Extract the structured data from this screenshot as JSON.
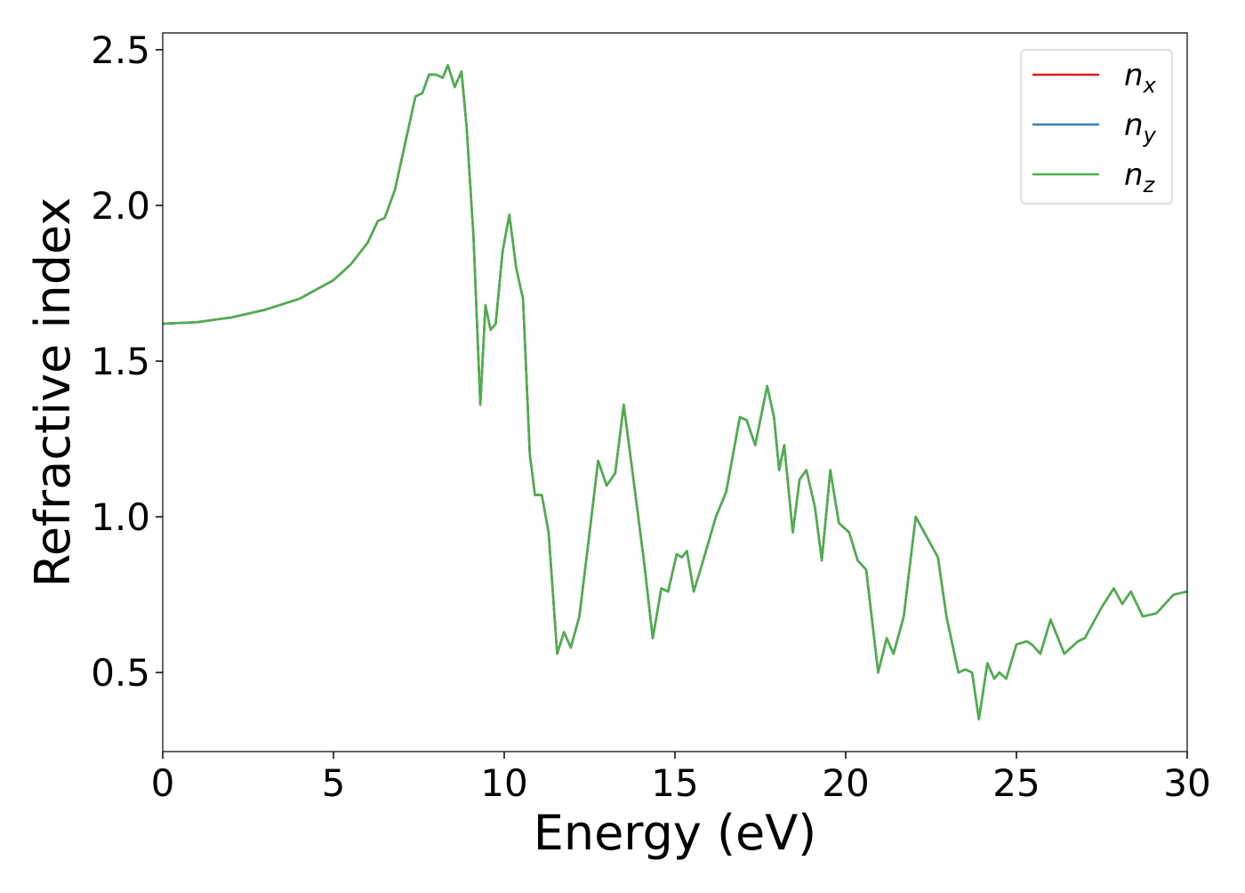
{
  "chart_data": {
    "type": "line",
    "xlabel": "Energy (eV)",
    "ylabel": "Refractive index",
    "x": [
      0,
      1,
      2,
      3,
      4,
      5,
      5.5,
      6,
      6.3,
      6.5,
      6.8,
      7.1,
      7.4,
      7.6,
      7.8,
      8.0,
      8.2,
      8.35,
      8.55,
      8.75,
      8.9,
      9.1,
      9.3,
      9.45,
      9.6,
      9.75,
      9.95,
      10.15,
      10.35,
      10.55,
      10.75,
      10.9,
      11.1,
      11.3,
      11.55,
      11.75,
      11.95,
      12.2,
      12.5,
      12.75,
      13.0,
      13.25,
      13.5,
      13.75,
      14.1,
      14.35,
      14.6,
      14.8,
      15.05,
      15.2,
      15.35,
      15.55,
      15.8,
      16.2,
      16.5,
      16.9,
      17.1,
      17.35,
      17.7,
      17.9,
      18.05,
      18.2,
      18.45,
      18.65,
      18.85,
      19.1,
      19.3,
      19.55,
      19.8,
      20.1,
      20.35,
      20.6,
      20.95,
      21.2,
      21.4,
      21.7,
      22.05,
      22.3,
      22.55,
      22.7,
      22.95,
      23.3,
      23.5,
      23.7,
      23.9,
      24.15,
      24.35,
      24.5,
      24.7,
      25.0,
      25.3,
      25.45,
      25.7,
      26.0,
      26.4,
      26.8,
      27.0,
      27.5,
      27.85,
      28.1,
      28.35,
      28.7,
      29.1,
      29.6,
      30
    ],
    "series": [
      {
        "name": "n_x",
        "color": "#e41a1c",
        "values": [
          1.62,
          1.625,
          1.64,
          1.665,
          1.7,
          1.76,
          1.81,
          1.88,
          1.95,
          1.96,
          2.05,
          2.2,
          2.35,
          2.36,
          2.42,
          2.42,
          2.41,
          2.45,
          2.38,
          2.43,
          2.25,
          1.9,
          1.36,
          1.68,
          1.6,
          1.62,
          1.85,
          1.97,
          1.8,
          1.7,
          1.2,
          1.07,
          1.07,
          0.95,
          0.56,
          0.63,
          0.58,
          0.68,
          0.95,
          1.18,
          1.1,
          1.14,
          1.36,
          1.15,
          0.85,
          0.61,
          0.77,
          0.76,
          0.88,
          0.87,
          0.89,
          0.76,
          0.85,
          1.0,
          1.08,
          1.32,
          1.31,
          1.23,
          1.42,
          1.32,
          1.15,
          1.23,
          0.95,
          1.12,
          1.15,
          1.03,
          0.86,
          1.15,
          0.98,
          0.95,
          0.86,
          0.83,
          0.5,
          0.61,
          0.56,
          0.68,
          1.0,
          0.95,
          0.9,
          0.87,
          0.68,
          0.5,
          0.51,
          0.5,
          0.35,
          0.53,
          0.48,
          0.5,
          0.48,
          0.59,
          0.6,
          0.59,
          0.56,
          0.67,
          0.56,
          0.6,
          0.61,
          0.71,
          0.77,
          0.72,
          0.76,
          0.68,
          0.69,
          0.75,
          0.76
        ]
      },
      {
        "name": "n_y",
        "color": "#377eb8",
        "values": [
          1.62,
          1.625,
          1.64,
          1.665,
          1.7,
          1.76,
          1.81,
          1.88,
          1.95,
          1.96,
          2.05,
          2.2,
          2.35,
          2.36,
          2.42,
          2.42,
          2.41,
          2.45,
          2.38,
          2.43,
          2.25,
          1.9,
          1.36,
          1.68,
          1.6,
          1.62,
          1.85,
          1.97,
          1.8,
          1.7,
          1.2,
          1.07,
          1.07,
          0.95,
          0.56,
          0.63,
          0.58,
          0.68,
          0.95,
          1.18,
          1.1,
          1.14,
          1.36,
          1.15,
          0.85,
          0.61,
          0.77,
          0.76,
          0.88,
          0.87,
          0.89,
          0.76,
          0.85,
          1.0,
          1.08,
          1.32,
          1.31,
          1.23,
          1.42,
          1.32,
          1.15,
          1.23,
          0.95,
          1.12,
          1.15,
          1.03,
          0.86,
          1.15,
          0.98,
          0.95,
          0.86,
          0.83,
          0.5,
          0.61,
          0.56,
          0.68,
          1.0,
          0.95,
          0.9,
          0.87,
          0.68,
          0.5,
          0.51,
          0.5,
          0.35,
          0.53,
          0.48,
          0.5,
          0.48,
          0.59,
          0.6,
          0.59,
          0.56,
          0.67,
          0.56,
          0.6,
          0.61,
          0.71,
          0.77,
          0.72,
          0.76,
          0.68,
          0.69,
          0.75,
          0.76
        ]
      },
      {
        "name": "n_z",
        "color": "#4daf4a",
        "values": [
          1.62,
          1.625,
          1.64,
          1.665,
          1.7,
          1.76,
          1.81,
          1.88,
          1.95,
          1.96,
          2.05,
          2.2,
          2.35,
          2.36,
          2.42,
          2.42,
          2.41,
          2.45,
          2.38,
          2.43,
          2.25,
          1.9,
          1.36,
          1.68,
          1.6,
          1.62,
          1.85,
          1.97,
          1.8,
          1.7,
          1.2,
          1.07,
          1.07,
          0.95,
          0.56,
          0.63,
          0.58,
          0.68,
          0.95,
          1.18,
          1.1,
          1.14,
          1.36,
          1.15,
          0.85,
          0.61,
          0.77,
          0.76,
          0.88,
          0.87,
          0.89,
          0.76,
          0.85,
          1.0,
          1.08,
          1.32,
          1.31,
          1.23,
          1.42,
          1.32,
          1.15,
          1.23,
          0.95,
          1.12,
          1.15,
          1.03,
          0.86,
          1.15,
          0.98,
          0.95,
          0.86,
          0.83,
          0.5,
          0.61,
          0.56,
          0.68,
          1.0,
          0.95,
          0.9,
          0.87,
          0.68,
          0.5,
          0.51,
          0.5,
          0.35,
          0.53,
          0.48,
          0.5,
          0.48,
          0.59,
          0.6,
          0.59,
          0.56,
          0.67,
          0.56,
          0.6,
          0.61,
          0.71,
          0.77,
          0.72,
          0.76,
          0.68,
          0.69,
          0.75,
          0.76
        ]
      }
    ],
    "xlim": [
      0,
      30
    ],
    "xticks": [
      0,
      5,
      10,
      15,
      20,
      25,
      30
    ],
    "ylim": [
      0.246,
      2.554
    ],
    "yticks": [
      {
        "value": 0.5,
        "label": "0.5"
      },
      {
        "value": 1.0,
        "label": "1.0"
      },
      {
        "value": 1.5,
        "label": "1.5"
      },
      {
        "value": 2.0,
        "label": "2.0"
      },
      {
        "value": 2.5,
        "label": "2.5"
      }
    ],
    "grid": false,
    "legend": "upper right"
  }
}
